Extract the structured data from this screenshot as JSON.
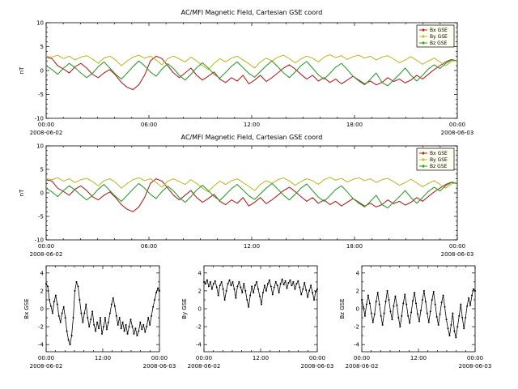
{
  "figure": {
    "background": "#ffffff",
    "frame_color": "#000000",
    "legend_bg": "#fffff2"
  },
  "chart_data": [
    {
      "type": "line",
      "title": "AC/MFI Magnetic Field, Cartesian GSE coord",
      "ylabel": "nT",
      "ylim": [
        -10,
        10
      ],
      "yticks": [
        10,
        5,
        0,
        -5,
        -10
      ],
      "x_range_hours": [
        0,
        24
      ],
      "xticks": [
        {
          "hour": 0,
          "label": "00:00"
        },
        {
          "hour": 6,
          "label": "06:00"
        },
        {
          "hour": 12,
          "label": "12:00"
        },
        {
          "hour": 18,
          "label": "18:00"
        },
        {
          "hour": 24,
          "label": "00:00"
        }
      ],
      "x_dates": [
        {
          "hour": 0,
          "label": "2008-06-02"
        },
        {
          "hour": 24,
          "label": "2008-06-03"
        }
      ],
      "legend": {
        "position": "top-right",
        "entries": [
          "Bx GSE",
          "By GSE",
          "Bz GSE"
        ]
      },
      "grid": false,
      "series": [
        {
          "name": "Bx GSE",
          "color": "#b22222",
          "values": [
            2.8,
            2.5,
            1.0,
            0.3,
            -0.5,
            0.8,
            1.5,
            0.5,
            -0.8,
            -1.5,
            -0.5,
            0.2,
            -1.0,
            -2.5,
            -3.5,
            -4.0,
            -3.0,
            -1.0,
            2.0,
            3.0,
            2.5,
            1.0,
            -0.5,
            -1.5,
            -0.5,
            0.5,
            -1.0,
            -2.0,
            -1.2,
            -0.3,
            -1.8,
            -2.5,
            -1.5,
            -2.2,
            -1.0,
            -2.8,
            -2.0,
            -1.0,
            -2.3,
            -1.5,
            -0.5,
            0.5,
            1.2,
            0.3,
            -0.8,
            -1.8,
            -1.0,
            -2.2,
            -1.5,
            -2.5,
            -1.8,
            -2.8,
            -2.0,
            -1.2,
            -2.0,
            -2.8,
            -2.2,
            -3.0,
            -2.5,
            -1.5,
            -2.3,
            -1.8,
            -2.6,
            -2.0,
            -1.0,
            -1.8,
            -0.8,
            0.2,
            1.0,
            1.8,
            2.3,
            2.0
          ]
        },
        {
          "name": "By GSE",
          "color": "#bdbd2e",
          "values": [
            3.0,
            2.8,
            3.2,
            2.5,
            3.0,
            2.2,
            2.8,
            3.1,
            2.4,
            1.5,
            2.6,
            3.0,
            2.2,
            1.0,
            2.0,
            2.8,
            3.2,
            2.6,
            3.0,
            2.2,
            1.2,
            2.5,
            3.0,
            2.4,
            1.8,
            2.8,
            2.0,
            1.0,
            0.2,
            1.5,
            2.5,
            1.8,
            2.6,
            3.0,
            2.2,
            1.4,
            0.5,
            1.8,
            2.6,
            2.0,
            2.8,
            3.2,
            2.5,
            1.6,
            2.4,
            3.0,
            2.6,
            1.8,
            2.8,
            3.3,
            2.7,
            3.1,
            2.3,
            2.9,
            3.2,
            2.6,
            3.0,
            2.2,
            2.8,
            3.1,
            2.4,
            1.6,
            2.2,
            2.9,
            2.1,
            1.3,
            2.0,
            2.6,
            1.8,
            1.0,
            1.9,
            2.2
          ]
        },
        {
          "name": "Bz GSE",
          "color": "#2e9e2e",
          "values": [
            1.0,
            0.2,
            -0.8,
            0.5,
            1.5,
            0.6,
            -0.5,
            -1.5,
            -0.6,
            0.8,
            1.8,
            0.5,
            -0.8,
            -1.8,
            -0.5,
            0.8,
            2.0,
            1.0,
            -0.3,
            -1.2,
            0.3,
            1.4,
            0.4,
            -1.0,
            -2.0,
            -0.8,
            0.6,
            1.6,
            0.5,
            -0.8,
            -1.6,
            -0.4,
            0.9,
            1.8,
            0.6,
            -0.6,
            -1.4,
            -0.2,
            1.0,
            2.0,
            0.8,
            -0.5,
            -1.5,
            -0.3,
            1.0,
            1.9,
            0.5,
            -0.9,
            -1.8,
            -0.6,
            0.7,
            1.5,
            0.2,
            -1.2,
            -2.2,
            -3.0,
            -1.8,
            -0.5,
            -2.5,
            -3.2,
            -2.0,
            -0.8,
            0.5,
            -1.0,
            -2.2,
            -1.0,
            0.3,
            1.2,
            0.4,
            1.5,
            2.2,
            2.0
          ]
        }
      ]
    },
    {
      "type": "line",
      "title": "AC/MFI Magnetic Field, Cartesian GSE coord",
      "ylabel": "nT",
      "ylim": [
        -10,
        10
      ],
      "yticks": [
        10,
        5,
        0,
        -5,
        -10
      ],
      "x_range_hours": [
        0,
        24
      ],
      "xticks": [
        {
          "hour": 0,
          "label": "00:00"
        },
        {
          "hour": 6,
          "label": "06:00"
        },
        {
          "hour": 12,
          "label": "12:00"
        },
        {
          "hour": 18,
          "label": "18:00"
        },
        {
          "hour": 24,
          "label": "00:00"
        }
      ],
      "x_dates": [
        {
          "hour": 0,
          "label": "2008-06-02"
        },
        {
          "hour": 24,
          "label": "2008-06-03"
        }
      ],
      "legend": {
        "position": "top-right",
        "entries": [
          "Bx GSE",
          "By GSE",
          "Bz GSE"
        ]
      },
      "grid": false,
      "series": [
        {
          "name": "Bx GSE",
          "color": "#b22222",
          "values": [
            2.8,
            2.5,
            1.0,
            0.3,
            -0.5,
            0.8,
            1.5,
            0.5,
            -0.8,
            -1.5,
            -0.5,
            0.2,
            -1.0,
            -2.5,
            -3.5,
            -4.0,
            -3.0,
            -1.0,
            2.0,
            3.0,
            2.5,
            1.0,
            -0.5,
            -1.5,
            -0.5,
            0.5,
            -1.0,
            -2.0,
            -1.2,
            -0.3,
            -1.8,
            -2.5,
            -1.5,
            -2.2,
            -1.0,
            -2.8,
            -2.0,
            -1.0,
            -2.3,
            -1.5,
            -0.5,
            0.5,
            1.2,
            0.3,
            -0.8,
            -1.8,
            -1.0,
            -2.2,
            -1.5,
            -2.5,
            -1.8,
            -2.8,
            -2.0,
            -1.2,
            -2.0,
            -2.8,
            -2.2,
            -3.0,
            -2.5,
            -1.5,
            -2.3,
            -1.8,
            -2.6,
            -2.0,
            -1.0,
            -1.8,
            -0.8,
            0.2,
            1.0,
            1.8,
            2.3,
            2.0
          ]
        },
        {
          "name": "By GSE",
          "color": "#bdbd2e",
          "values": [
            3.0,
            2.8,
            3.2,
            2.5,
            3.0,
            2.2,
            2.8,
            3.1,
            2.4,
            1.5,
            2.6,
            3.0,
            2.2,
            1.0,
            2.0,
            2.8,
            3.2,
            2.6,
            3.0,
            2.2,
            1.2,
            2.5,
            3.0,
            2.4,
            1.8,
            2.8,
            2.0,
            1.0,
            0.2,
            1.5,
            2.5,
            1.8,
            2.6,
            3.0,
            2.2,
            1.4,
            0.5,
            1.8,
            2.6,
            2.0,
            2.8,
            3.2,
            2.5,
            1.6,
            2.4,
            3.0,
            2.6,
            1.8,
            2.8,
            3.3,
            2.7,
            3.1,
            2.3,
            2.9,
            3.2,
            2.6,
            3.0,
            2.2,
            2.8,
            3.1,
            2.4,
            1.6,
            2.2,
            2.9,
            2.1,
            1.3,
            2.0,
            2.6,
            1.8,
            1.0,
            1.9,
            2.2
          ]
        },
        {
          "name": "Bz GSE",
          "color": "#2e9e2e",
          "values": [
            1.0,
            0.2,
            -0.8,
            0.5,
            1.5,
            0.6,
            -0.5,
            -1.5,
            -0.6,
            0.8,
            1.8,
            0.5,
            -0.8,
            -1.8,
            -0.5,
            0.8,
            2.0,
            1.0,
            -0.3,
            -1.2,
            0.3,
            1.4,
            0.4,
            -1.0,
            -2.0,
            -0.8,
            0.6,
            1.6,
            0.5,
            -0.8,
            -1.6,
            -0.4,
            0.9,
            1.8,
            0.6,
            -0.6,
            -1.4,
            -0.2,
            1.0,
            2.0,
            0.8,
            -0.5,
            -1.5,
            -0.3,
            1.0,
            1.9,
            0.5,
            -0.9,
            -1.8,
            -0.6,
            0.7,
            1.5,
            0.2,
            -1.2,
            -2.2,
            -3.0,
            -1.8,
            -0.5,
            -2.5,
            -3.2,
            -2.0,
            -0.8,
            0.5,
            -1.0,
            -2.2,
            -1.0,
            0.3,
            1.2,
            0.4,
            1.5,
            2.2,
            2.0
          ]
        }
      ]
    },
    {
      "type": "line",
      "title": "",
      "ylabel": "Bx GSE",
      "ylim": [
        -4.8,
        4.8
      ],
      "yticks": [
        4,
        2,
        0,
        -2,
        -4
      ],
      "x_range_hours": [
        0,
        24
      ],
      "xticks": [
        {
          "hour": 0,
          "label": "00:00"
        },
        {
          "hour": 12,
          "label": "12:00"
        },
        {
          "hour": 24,
          "label": "00:00"
        }
      ],
      "x_dates": [
        {
          "hour": 0,
          "label": "2008-06-02"
        },
        {
          "hour": 24,
          "label": "2008-06-03"
        }
      ],
      "grid": false,
      "series": [
        {
          "name": "Bx GSE",
          "color": "#000000",
          "values": [
            2.8,
            2.5,
            1.0,
            0.3,
            -0.5,
            0.8,
            1.5,
            0.5,
            -0.8,
            -1.5,
            -0.5,
            0.2,
            -1.0,
            -2.5,
            -3.5,
            -4.0,
            -3.0,
            -1.0,
            2.0,
            3.0,
            2.5,
            1.0,
            -0.5,
            -1.5,
            -0.5,
            0.5,
            -1.0,
            -2.0,
            -1.2,
            -0.3,
            -1.8,
            -2.5,
            -1.5,
            -2.2,
            -1.0,
            -2.8,
            -2.0,
            -1.0,
            -2.3,
            -1.5,
            -0.5,
            0.5,
            1.2,
            0.3,
            -0.8,
            -1.8,
            -1.0,
            -2.2,
            -1.5,
            -2.5,
            -1.8,
            -2.8,
            -2.0,
            -1.2,
            -2.0,
            -2.8,
            -2.2,
            -3.0,
            -2.5,
            -1.5,
            -2.3,
            -1.8,
            -2.6,
            -2.0,
            -1.0,
            -1.8,
            -0.8,
            0.2,
            1.0,
            1.8,
            2.3,
            2.0
          ]
        }
      ]
    },
    {
      "type": "line",
      "title": "",
      "ylabel": "By GSE",
      "ylim": [
        -4.8,
        4.8
      ],
      "yticks": [
        4,
        2,
        0,
        -2,
        -4
      ],
      "x_range_hours": [
        0,
        24
      ],
      "xticks": [
        {
          "hour": 0,
          "label": "00:00"
        },
        {
          "hour": 12,
          "label": "12:00"
        },
        {
          "hour": 24,
          "label": "00:00"
        }
      ],
      "x_dates": [
        {
          "hour": 0,
          "label": "2008-06-02"
        },
        {
          "hour": 24,
          "label": "2008-06-03"
        }
      ],
      "grid": false,
      "series": [
        {
          "name": "By GSE",
          "color": "#000000",
          "values": [
            3.0,
            2.8,
            3.2,
            2.5,
            3.0,
            2.2,
            2.8,
            3.1,
            2.4,
            1.5,
            2.6,
            3.0,
            2.2,
            1.0,
            2.0,
            2.8,
            3.2,
            2.6,
            3.0,
            2.2,
            1.2,
            2.5,
            3.0,
            2.4,
            1.8,
            2.8,
            2.0,
            1.0,
            0.2,
            1.5,
            2.5,
            1.8,
            2.6,
            3.0,
            2.2,
            1.4,
            0.5,
            1.8,
            2.6,
            2.0,
            2.8,
            3.2,
            2.5,
            1.6,
            2.4,
            3.0,
            2.6,
            1.8,
            2.8,
            3.3,
            2.7,
            3.1,
            2.3,
            2.9,
            3.2,
            2.6,
            3.0,
            2.2,
            2.8,
            3.1,
            2.4,
            1.6,
            2.2,
            2.9,
            2.1,
            1.3,
            2.0,
            2.6,
            1.8,
            1.0,
            1.9,
            2.2
          ]
        }
      ]
    },
    {
      "type": "line",
      "title": "",
      "ylabel": "Bz GSE",
      "ylim": [
        -4.8,
        4.8
      ],
      "yticks": [
        4,
        2,
        0,
        -2,
        -4
      ],
      "x_range_hours": [
        0,
        24
      ],
      "xticks": [
        {
          "hour": 0,
          "label": "00:00"
        },
        {
          "hour": 12,
          "label": "12:00"
        },
        {
          "hour": 24,
          "label": "00:00"
        }
      ],
      "x_dates": [
        {
          "hour": 0,
          "label": "2008-06-02"
        },
        {
          "hour": 24,
          "label": "2008-06-03"
        }
      ],
      "grid": false,
      "series": [
        {
          "name": "Bz GSE",
          "color": "#000000",
          "values": [
            1.0,
            0.2,
            -0.8,
            0.5,
            1.5,
            0.6,
            -0.5,
            -1.5,
            -0.6,
            0.8,
            1.8,
            0.5,
            -0.8,
            -1.8,
            -0.5,
            0.8,
            2.0,
            1.0,
            -0.3,
            -1.2,
            0.3,
            1.4,
            0.4,
            -1.0,
            -2.0,
            -0.8,
            0.6,
            1.6,
            0.5,
            -0.8,
            -1.6,
            -0.4,
            0.9,
            1.8,
            0.6,
            -0.6,
            -1.4,
            -0.2,
            1.0,
            2.0,
            0.8,
            -0.5,
            -1.5,
            -0.3,
            1.0,
            1.9,
            0.5,
            -0.9,
            -1.8,
            -0.6,
            0.7,
            1.5,
            0.2,
            -1.2,
            -2.2,
            -3.0,
            -1.8,
            -0.5,
            -2.5,
            -3.2,
            -2.0,
            -0.8,
            0.5,
            -1.0,
            -2.2,
            -1.0,
            0.3,
            1.2,
            0.4,
            1.5,
            2.2,
            2.0
          ]
        }
      ]
    }
  ]
}
